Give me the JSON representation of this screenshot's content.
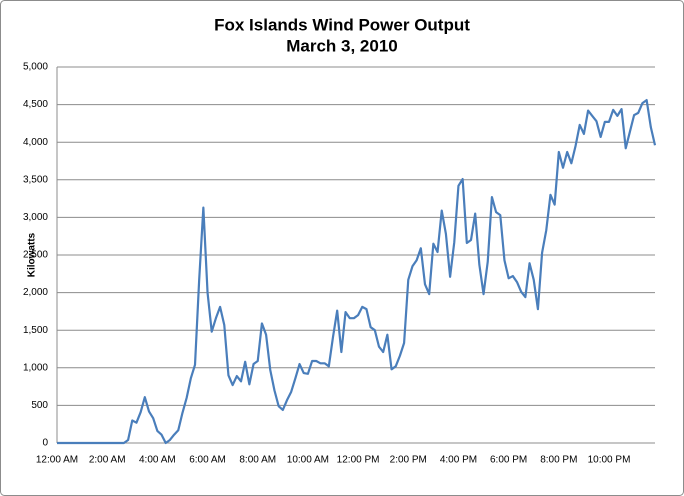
{
  "chart_data": {
    "type": "line",
    "title": "Fox Islands Wind Power Output",
    "subtitle": "March 3, 2010",
    "y_label": "Kilowatts",
    "color": "#4a7ebb",
    "grid": true,
    "ylim": [
      0,
      5000
    ],
    "yticks": [
      0,
      500,
      {
        "value": 1000,
        "label": "1,000"
      },
      {
        "value": 1500,
        "label": "1,500"
      },
      {
        "value": 2000,
        "label": "2,000"
      },
      {
        "value": 2500,
        "label": "2,500"
      },
      {
        "value": 3000,
        "label": "3,000"
      },
      {
        "value": 3500,
        "label": "3,500"
      },
      {
        "value": 4000,
        "label": "4,000"
      },
      {
        "value": 4500,
        "label": "4,500"
      },
      {
        "value": 5000,
        "label": "5,000"
      }
    ],
    "categories": [
      "12:00 AM",
      null,
      null,
      null,
      null,
      null,
      null,
      null,
      null,
      null,
      null,
      null,
      "2:00 AM",
      null,
      null,
      null,
      null,
      null,
      null,
      null,
      null,
      null,
      null,
      null,
      "4:00 AM",
      null,
      null,
      null,
      null,
      null,
      null,
      null,
      null,
      null,
      null,
      null,
      "6:00 AM",
      null,
      null,
      null,
      null,
      null,
      null,
      null,
      null,
      null,
      null,
      null,
      "8:00 AM",
      null,
      null,
      null,
      null,
      null,
      null,
      null,
      null,
      null,
      null,
      null,
      "10:00 AM",
      null,
      null,
      null,
      null,
      null,
      null,
      null,
      null,
      null,
      null,
      null,
      "12:00 PM",
      null,
      null,
      null,
      null,
      null,
      null,
      null,
      null,
      null,
      null,
      null,
      "2:00 PM",
      null,
      null,
      null,
      null,
      null,
      null,
      null,
      null,
      null,
      null,
      null,
      "4:00 PM",
      null,
      null,
      null,
      null,
      null,
      null,
      null,
      null,
      null,
      null,
      null,
      "6:00 PM",
      null,
      null,
      null,
      null,
      null,
      null,
      null,
      null,
      null,
      null,
      null,
      "8:00 PM",
      null,
      null,
      null,
      null,
      null,
      null,
      null,
      null,
      null,
      null,
      null,
      "10:00 PM",
      null,
      null,
      null,
      null,
      null,
      null,
      null,
      null,
      null,
      null,
      null
    ],
    "values": [
      0,
      0,
      0,
      0,
      0,
      0,
      0,
      0,
      0,
      0,
      0,
      0,
      0,
      0,
      0,
      0,
      0,
      40,
      300,
      270,
      410,
      610,
      420,
      330,
      160,
      110,
      0,
      40,
      110,
      170,
      400,
      600,
      860,
      1040,
      2170,
      3130,
      2000,
      1480,
      1660,
      1810,
      1570,
      900,
      770,
      890,
      820,
      1080,
      780,
      1050,
      1090,
      1590,
      1440,
      970,
      700,
      490,
      440,
      570,
      680,
      860,
      1050,
      930,
      920,
      1090,
      1090,
      1060,
      1060,
      1020,
      1410,
      1760,
      1210,
      1740,
      1660,
      1660,
      1700,
      1810,
      1780,
      1540,
      1500,
      1280,
      1210,
      1440,
      980,
      1020,
      1160,
      1330,
      2170,
      2350,
      2430,
      2590,
      2110,
      1980,
      2650,
      2540,
      3090,
      2780,
      2210,
      2670,
      3420,
      3510,
      2660,
      2700,
      3050,
      2370,
      1980,
      2410,
      3270,
      3070,
      3030,
      2430,
      2190,
      2220,
      2140,
      2010,
      1940,
      2390,
      2170,
      1780,
      2530,
      2830,
      3300,
      3170,
      3870,
      3660,
      3870,
      3720,
      3950,
      4230,
      4110,
      4420,
      4350,
      4280,
      4070,
      4270,
      4270,
      4430,
      4350,
      4440,
      3920,
      4140,
      4360,
      4390,
      4520,
      4560,
      4200,
      3960
    ]
  }
}
